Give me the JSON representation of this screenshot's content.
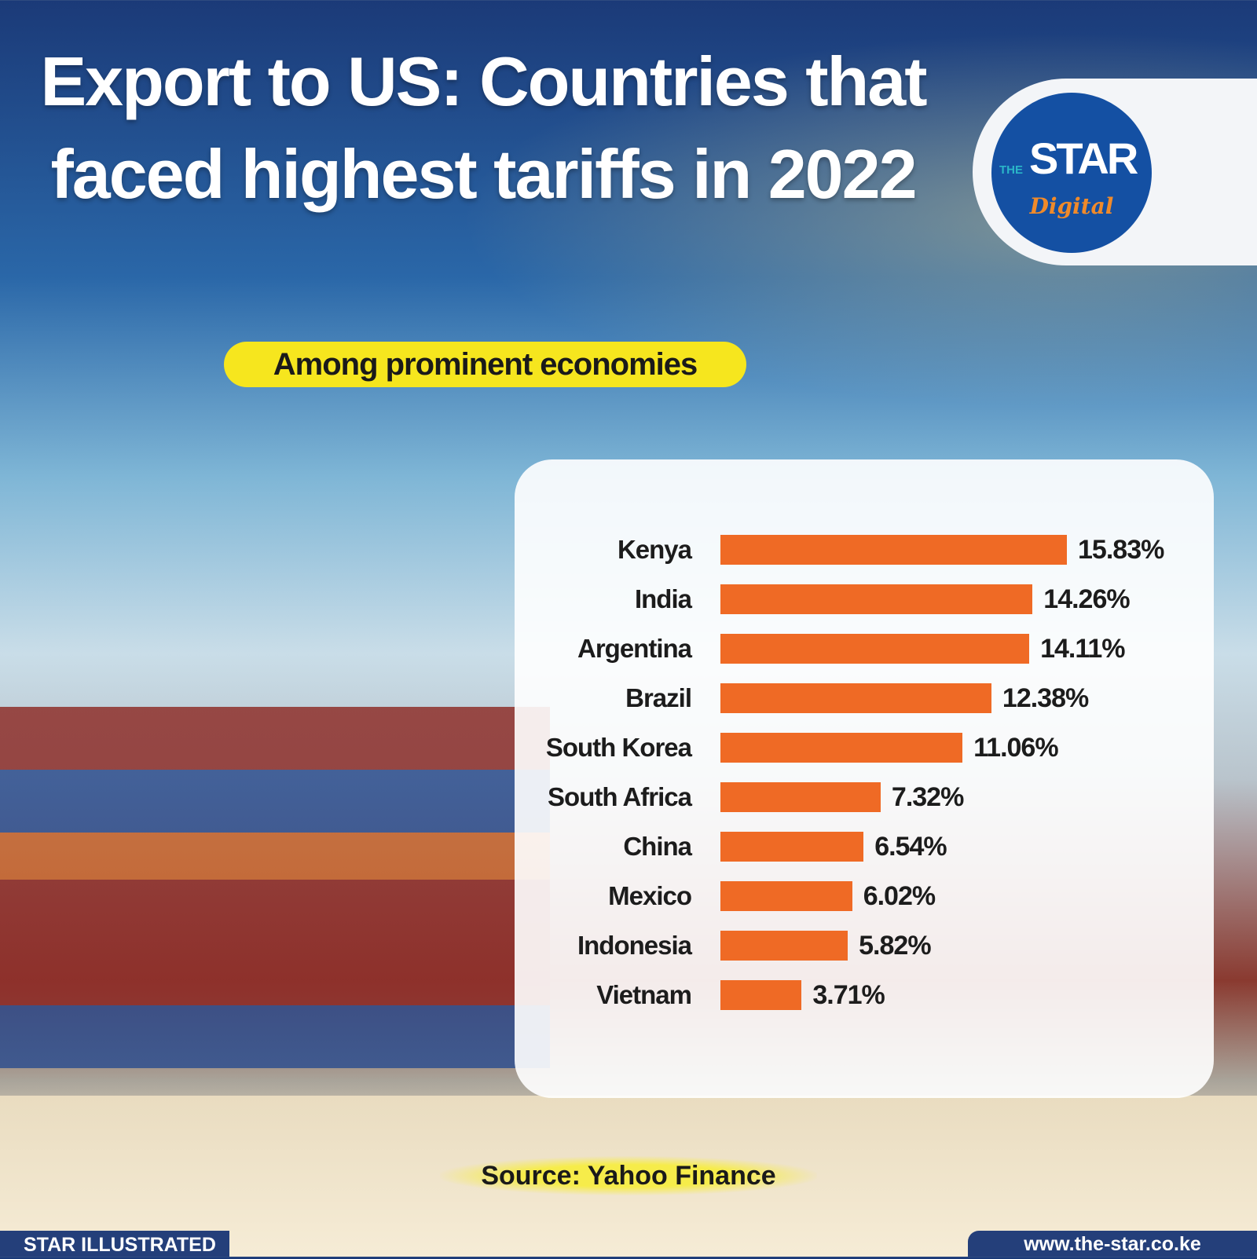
{
  "header": {
    "title": "Export to US: Countries that faced highest tariffs in 2022",
    "subtitle": "Among prominent economies"
  },
  "logo": {
    "the": "THE",
    "star": "STAR",
    "digital": "Digital",
    "colors": {
      "circle": "#1450a3",
      "digital": "#f08a2a"
    }
  },
  "chart_data": {
    "type": "bar",
    "orientation": "horizontal",
    "categories": [
      "Kenya",
      "India",
      "Argentina",
      "Brazil",
      "South Korea",
      "South Africa",
      "China",
      "Mexico",
      "Indonesia",
      "Vietnam"
    ],
    "values": [
      15.83,
      14.26,
      14.11,
      12.38,
      11.06,
      7.32,
      6.54,
      6.02,
      5.82,
      3.71
    ],
    "value_labels": [
      "15.83%",
      "14.26%",
      "14.11%",
      "12.38%",
      "11.06%",
      "7.32%",
      "6.54%",
      "6.02%",
      "5.82%",
      "3.71%"
    ],
    "unit": "%",
    "bar_color": "#ef6a25",
    "grid": false
  },
  "source": "Source: Yahoo Finance",
  "footer": {
    "left": "STAR ILLUSTRATED",
    "right": "www.the-star.co.ke"
  }
}
